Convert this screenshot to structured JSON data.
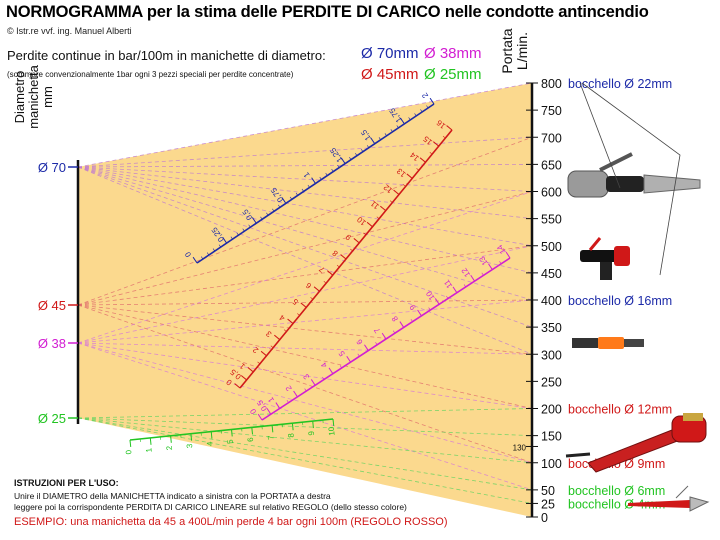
{
  "title": {
    "prefix": "NORMOGRAMMA ",
    "part1": "per la stima delle ",
    "bold2": "PERDITE DI CARICO",
    "part3": " nelle condotte antincendio"
  },
  "credit": "© Istr.re vvf. ing. Manuel Alberti",
  "subtitle": "Perdite continue in bar/100m in manichette di diametro:",
  "note": "(sommare convenzionalmente 1bar ogni 3 pezzi speciali per perdite concentrate)",
  "diameter_legend": [
    {
      "label": "Ø 70mm",
      "color": "#1c2aa8"
    },
    {
      "label": "Ø 38mm",
      "color": "#d21ed2"
    },
    {
      "label": "Ø 45mm",
      "color": "#d01818"
    },
    {
      "label": "Ø 25mm",
      "color": "#22c422"
    }
  ],
  "left_axis": {
    "title_line1": "Diametro",
    "title_line2": "manichetta",
    "title_line3": "mm",
    "labels": [
      {
        "text": "Ø 70",
        "value": 70,
        "color": "#1c2aa8"
      },
      {
        "text": "Ø 45",
        "value": 45,
        "color": "#d01818"
      },
      {
        "text": "Ø 38",
        "value": 38,
        "color": "#d21ed2"
      },
      {
        "text": "Ø 25",
        "value": 25,
        "color": "#22c422"
      }
    ]
  },
  "right_axis": {
    "title_line1": "Portata",
    "title_line2": "L/min.",
    "ticks": [
      "0",
      "25",
      "50",
      "100",
      "130",
      "150",
      "200",
      "250",
      "300",
      "350",
      "400",
      "450",
      "500",
      "550",
      "600",
      "650",
      "700",
      "750",
      "800"
    ],
    "tick_values": [
      0,
      25,
      50,
      100,
      130,
      150,
      200,
      250,
      300,
      350,
      400,
      450,
      500,
      550,
      600,
      650,
      700,
      750,
      800
    ]
  },
  "nozzles": [
    {
      "flow": 800,
      "label": "bocchello Ø 22mm",
      "color": "#1c2aa8"
    },
    {
      "flow": 400,
      "label": "bocchello Ø 16mm",
      "color": "#1c2aa8"
    },
    {
      "flow": 200,
      "label": "bocchello Ø 12mm",
      "color": "#d01818"
    },
    {
      "flow": 100,
      "label": "bocchello Ø 9mm",
      "color": "#d01818"
    },
    {
      "flow": 50,
      "label": "bocchello Ø 6mm",
      "color": "#22c422"
    },
    {
      "flow": 25,
      "label": "bocchello Ø 4mm",
      "color": "#22c422"
    }
  ],
  "chart_data": {
    "type": "nomogram",
    "title": "NORMOGRAMMA per la stima delle PERDITE DI CARICO nelle condotte antincendio",
    "left_scale": "Diametro manichetta mm",
    "right_scale": "Portata L/min.",
    "right_range": [
      0,
      800
    ],
    "series": [
      {
        "name": "Ø 70mm",
        "color": "#1c2aa8",
        "unit": "bar/100m",
        "ticks": [
          "0",
          "0,25",
          "0,5",
          "0,75",
          "1",
          "1,25",
          "1,5",
          "1,75",
          "2"
        ],
        "tick_values": [
          0,
          0.25,
          0.5,
          0.75,
          1,
          1.25,
          1.5,
          1.75,
          2
        ]
      },
      {
        "name": "Ø 45mm",
        "color": "#d01818",
        "unit": "bar/100m",
        "ticks": [
          "0",
          "0,5",
          "1",
          "2",
          "3",
          "4",
          "5",
          "6",
          "7",
          "8",
          "9",
          "10",
          "11",
          "12",
          "13",
          "14",
          "15",
          "16"
        ],
        "tick_values": [
          0,
          0.5,
          1,
          2,
          3,
          4,
          5,
          6,
          7,
          8,
          9,
          10,
          11,
          12,
          13,
          14,
          15,
          16
        ]
      },
      {
        "name": "Ø 38mm",
        "color": "#d21ed2",
        "unit": "bar/100m",
        "ticks": [
          "0",
          "0,5",
          "1",
          "2",
          "3",
          "4",
          "5",
          "6",
          "7",
          "8",
          "9",
          "10",
          "11",
          "12",
          "13",
          "14"
        ],
        "tick_values": [
          0,
          0.5,
          1,
          2,
          3,
          4,
          5,
          6,
          7,
          8,
          9,
          10,
          11,
          12,
          13,
          14
        ]
      },
      {
        "name": "Ø 25mm",
        "color": "#22c422",
        "unit": "bar/100m",
        "ticks": [
          "0",
          "1",
          "2",
          "3",
          "4",
          "5",
          "6",
          "7",
          "8",
          "9",
          "10"
        ],
        "tick_values": [
          0,
          1,
          2,
          3,
          4,
          5,
          6,
          7,
          8,
          9,
          10
        ]
      }
    ]
  },
  "instructions": {
    "heading": "ISTRUZIONI PER L'USO:",
    "line1": "Unire il DIAMETRO della MANICHETTA indicato a sinistra con la PORTATA a destra",
    "line2": "leggere poi la corrispondente PERDITA DI CARICO LINEARE sul relativo REGOLO (dello stesso colore)",
    "example": "ESEMPIO: una manichetta da 45 a 400L/min perde 4 bar ogni 100m (REGOLO ROSSO)"
  }
}
